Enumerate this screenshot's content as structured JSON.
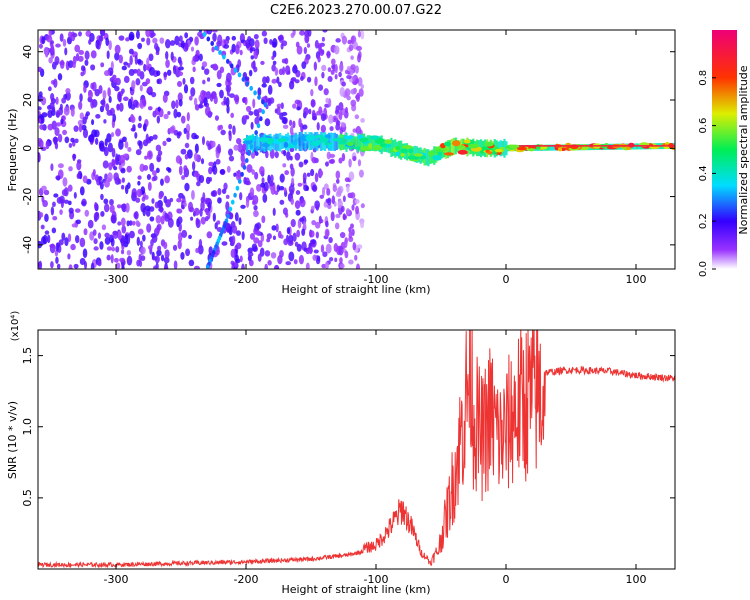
{
  "figure": {
    "title": "C2E6.2023.270.00.07.G22"
  },
  "colorbar": {
    "label": "Normalized spectral amplitude",
    "ticks": [
      "0.0",
      "0.2",
      "0.4",
      "0.6",
      "0.8"
    ],
    "tick_values": [
      0.0,
      0.2,
      0.4,
      0.6,
      0.8
    ],
    "range": [
      0,
      1
    ]
  },
  "chart_data": [
    {
      "type": "heatmap",
      "xlabel": "Height of straight line (km)",
      "ylabel": "Frequency (Hz)",
      "xlim": [
        -360,
        130
      ],
      "ylim": [
        -50,
        49
      ],
      "xticks": [
        -300,
        -200,
        -100,
        0,
        100
      ],
      "xtick_labels": [
        "-300",
        "-200",
        "-100",
        "0",
        "100"
      ],
      "yticks": [
        -40,
        -20,
        0,
        20,
        40
      ],
      "ytick_labels": [
        "-40",
        "-20",
        "0",
        "20",
        "40"
      ],
      "colormap": "white-purple-blue-cyan-green-yellow-red-magenta",
      "features": {
        "noise_region_x": [
          -360,
          -120
        ],
        "ridge_frequency_hz": [
          [
            -200,
            2
          ],
          [
            -150,
            3
          ],
          [
            -100,
            2
          ],
          [
            -80,
            -1
          ],
          [
            -60,
            -4
          ],
          [
            -40,
            1
          ],
          [
            -20,
            0
          ],
          [
            0,
            0
          ],
          [
            130,
            1
          ]
        ],
        "diagonal_streak": [
          [
            -235,
            49
          ],
          [
            -185,
            18
          ],
          [
            -215,
            -30
          ],
          [
            -230,
            -50
          ]
        ],
        "ridge_peak_amplitude": 0.9
      }
    },
    {
      "type": "line",
      "xlabel": "Height of straight line (km)",
      "ylabel": "SNR (10 * v/v)",
      "y_multiplier_label": "(x10⁴)",
      "xlim": [
        -360,
        130
      ],
      "ylim": [
        0,
        1.68
      ],
      "xticks": [
        -300,
        -200,
        -100,
        0,
        100
      ],
      "xtick_labels": [
        "-300",
        "-200",
        "-100",
        "0",
        "100"
      ],
      "yticks": [
        0.5,
        1.0,
        1.5
      ],
      "ytick_labels": [
        "0.5",
        "1.0",
        "1.5"
      ],
      "color": "#ee3333",
      "series": [
        {
          "x": [
            -360,
            -300,
            -250,
            -200,
            -150,
            -120,
            -100,
            -90,
            -80,
            -72,
            -65,
            -58,
            -52,
            -45,
            -40,
            -35,
            -30,
            -27,
            -25,
            -22,
            -18,
            -12,
            -5,
            0,
            5,
            15,
            30,
            50,
            80,
            100,
            130
          ],
          "values": [
            0.03,
            0.03,
            0.04,
            0.05,
            0.07,
            0.1,
            0.15,
            0.25,
            0.38,
            0.25,
            0.1,
            0.05,
            0.15,
            0.45,
            0.7,
            1.0,
            1.35,
            1.65,
            1.2,
            1.1,
            1.0,
            1.2,
            1.0,
            1.05,
            1.2,
            1.3,
            1.38,
            1.4,
            1.39,
            1.36,
            1.34
          ]
        }
      ]
    }
  ]
}
